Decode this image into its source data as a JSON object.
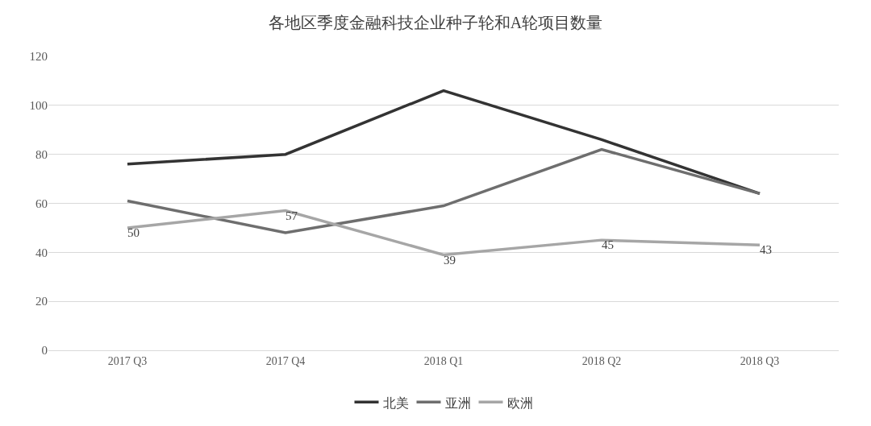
{
  "chart_data": {
    "type": "line",
    "title": "各地区季度金融科技企业种子轮和A轮项目数量",
    "categories": [
      "2017 Q3",
      "2017 Q4",
      "2018 Q1",
      "2018 Q2",
      "2018 Q3"
    ],
    "series": [
      {
        "name": "北美",
        "color": "#333333",
        "values": [
          76,
          80,
          106,
          86,
          64
        ]
      },
      {
        "name": "亚洲",
        "color": "#6e6e6e",
        "values": [
          61,
          48,
          59,
          82,
          64
        ]
      },
      {
        "name": "欧洲",
        "color": "#a6a6a6",
        "values": [
          50,
          57,
          39,
          45,
          43
        ],
        "value_labels": [
          "50",
          "57",
          "39",
          "45",
          "43"
        ]
      }
    ],
    "ylim": [
      0,
      120
    ],
    "yticks": [
      0,
      20,
      40,
      60,
      80,
      100,
      120
    ],
    "grid": "y",
    "legend": "bottom",
    "marker": "none",
    "line_style": "solid"
  }
}
